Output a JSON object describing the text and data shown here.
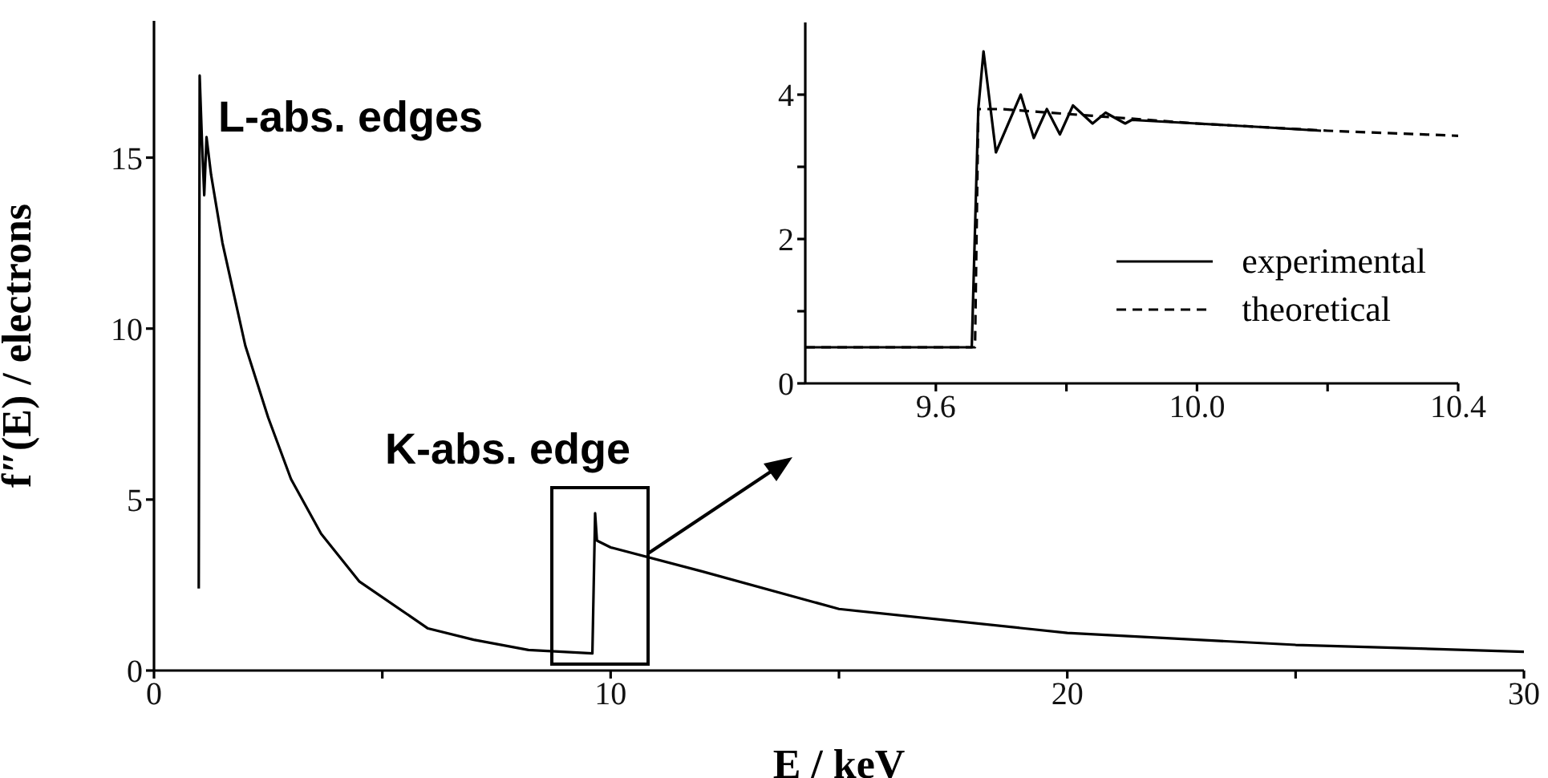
{
  "chart_data": [
    {
      "type": "line",
      "xlabel": "E / keV",
      "ylabel": "f″(E) / electrons",
      "xlim": [
        0,
        30
      ],
      "xticks": [
        0,
        {
          "value": 5,
          "label": null
        },
        10,
        {
          "value": 15,
          "label": null
        },
        20,
        {
          "value": 25,
          "label": null
        },
        30
      ],
      "ylim": [
        0,
        19
      ],
      "yticks": [
        0,
        5,
        10,
        15
      ],
      "annotations": [
        "L-abs. edges",
        "K-abs. edge"
      ],
      "series": [
        {
          "color": "#000000",
          "x": [
            0.98,
            1.0,
            1.05,
            1.1,
            1.15,
            1.25,
            1.5,
            2.0,
            2.5,
            3.0,
            3.66,
            4.5,
            6.0,
            7.0,
            8.2,
            9.6,
            9.66,
            9.7,
            10.0,
            12.0,
            15.0,
            20.0,
            25.0,
            30.0
          ],
          "values": [
            2.4,
            17.4,
            15.5,
            13.9,
            15.6,
            14.5,
            12.5,
            9.5,
            7.4,
            5.6,
            4.0,
            2.6,
            1.23,
            0.9,
            0.6,
            0.5,
            4.6,
            3.8,
            3.6,
            2.9,
            1.8,
            1.1,
            0.75,
            0.55
          ]
        }
      ]
    },
    {
      "type": "line",
      "legend": "right",
      "xlim": [
        9.4,
        10.4
      ],
      "xticks": [
        9.6,
        {
          "value": 9.8,
          "label": null
        },
        {
          "value": 10.0,
          "label": "10.0"
        },
        {
          "value": 10.2,
          "label": null
        },
        10.4
      ],
      "ylim": [
        0,
        5
      ],
      "yticks": [
        0,
        {
          "value": 1,
          "label": null
        },
        2,
        {
          "value": 3,
          "label": null
        },
        4
      ],
      "series": [
        {
          "name": "experimental",
          "color": "#000000",
          "line_style": "solid",
          "x": [
            9.4,
            9.655,
            9.665,
            9.673,
            9.692,
            9.73,
            9.75,
            9.77,
            9.79,
            9.81,
            9.84,
            9.86,
            9.89,
            9.9,
            10.0,
            10.1,
            10.19
          ],
          "values": [
            0.5,
            0.5,
            3.8,
            4.6,
            3.2,
            4.0,
            3.4,
            3.8,
            3.45,
            3.85,
            3.6,
            3.75,
            3.6,
            3.65,
            3.6,
            3.55,
            3.5
          ]
        },
        {
          "name": "theoretical",
          "color": "#000000",
          "line_style": "dashed",
          "x": [
            9.4,
            9.66,
            9.665,
            9.7,
            9.85,
            10.0,
            10.2,
            10.4
          ],
          "values": [
            0.5,
            0.5,
            3.8,
            3.8,
            3.7,
            3.6,
            3.5,
            3.43
          ]
        }
      ]
    }
  ]
}
